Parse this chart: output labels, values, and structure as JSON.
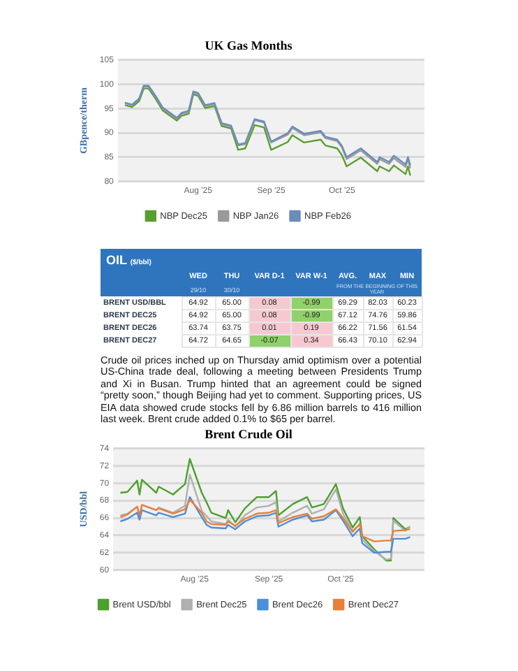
{
  "chart_data": [
    {
      "type": "line",
      "title": "UK Gas Months",
      "ylabel": "GBpence/therm",
      "xlim": [
        "2025-06-28",
        "2025-11-05"
      ],
      "xticks": [
        {
          "value": "2025-08-01",
          "label": "Aug '25"
        },
        {
          "value": "2025-09-01",
          "label": "Sep '25"
        },
        {
          "value": "2025-10-01",
          "label": "Oct '25"
        }
      ],
      "ylim": [
        80,
        105
      ],
      "yticks": [
        80,
        85,
        90,
        95,
        100,
        105
      ],
      "grid": "y",
      "legend": "bottom",
      "x": [
        "2025-07-01",
        "2025-07-04",
        "2025-07-07",
        "2025-07-09",
        "2025-07-11",
        "2025-07-14",
        "2025-07-17",
        "2025-07-23",
        "2025-07-25",
        "2025-07-28",
        "2025-07-30",
        "2025-08-01",
        "2025-08-04",
        "2025-08-08",
        "2025-08-11",
        "2025-08-15",
        "2025-08-18",
        "2025-08-21",
        "2025-08-25",
        "2025-08-29",
        "2025-09-01",
        "2025-09-08",
        "2025-09-10",
        "2025-09-15",
        "2025-09-22",
        "2025-09-24",
        "2025-09-29",
        "2025-10-01",
        "2025-10-03",
        "2025-10-09",
        "2025-10-16",
        "2025-10-17",
        "2025-10-21",
        "2025-10-23",
        "2025-10-28",
        "2025-10-29",
        "2025-10-30"
      ],
      "series": [
        {
          "name": "NBP Dec25",
          "color": "#5a9e2e",
          "values": [
            95.7,
            95.3,
            96.5,
            99.1,
            99.1,
            97.0,
            94.6,
            92.5,
            93.5,
            93.9,
            97.9,
            97.6,
            95.1,
            95.5,
            91.4,
            90.9,
            86.5,
            86.8,
            91.6,
            91.1,
            86.5,
            88.1,
            89.5,
            88.0,
            88.6,
            87.4,
            86.8,
            85.4,
            83.1,
            84.9,
            82.1,
            83.1,
            82.1,
            83.3,
            81.5,
            83.1,
            81.2
          ]
        },
        {
          "name": "NBP Jan26",
          "color": "#9a9a9a",
          "values": [
            96.1,
            95.7,
            96.9,
            99.5,
            99.5,
            97.4,
            95.0,
            92.9,
            93.9,
            94.3,
            98.3,
            98.0,
            95.5,
            95.9,
            91.8,
            91.3,
            87.4,
            87.7,
            92.6,
            92.1,
            88.0,
            89.6,
            91.0,
            89.5,
            90.1,
            88.9,
            88.3,
            87.0,
            84.6,
            86.4,
            83.6,
            84.6,
            83.6,
            84.8,
            83.0,
            84.6,
            82.7
          ]
        },
        {
          "name": "NBP Feb26",
          "color": "#6a8cba",
          "values": [
            96.2,
            95.8,
            97.0,
            99.7,
            99.7,
            97.6,
            95.2,
            93.1,
            94.1,
            94.5,
            98.5,
            98.2,
            95.7,
            96.1,
            92.0,
            91.5,
            87.6,
            87.9,
            92.8,
            92.3,
            88.2,
            89.9,
            91.3,
            89.8,
            90.4,
            89.2,
            88.6,
            87.3,
            85.0,
            86.8,
            84.0,
            85.0,
            84.0,
            85.3,
            83.5,
            85.0,
            83.3
          ]
        }
      ]
    },
    {
      "type": "heatmap",
      "title": "OIL",
      "subtitle": "($/bbl)",
      "categories": [
        "WED",
        "THU",
        "VAR D-1",
        "VAR W-1",
        "AVG.",
        "MAX",
        "MIN"
      ],
      "y_categories": [
        "BRENT USD/BBL",
        "BRENT DEC25",
        "BRENT DEC26",
        "BRENT DEC27"
      ],
      "cells": [
        [
          64.92,
          65.0,
          0.08,
          -0.99,
          69.29,
          82.03,
          60.23
        ],
        [
          64.92,
          65.0,
          0.08,
          -0.99,
          67.12,
          74.76,
          59.86
        ],
        [
          63.74,
          63.75,
          0.01,
          0.19,
          66.22,
          71.56,
          61.54
        ],
        [
          64.72,
          64.65,
          -0.07,
          0.34,
          66.43,
          70.1,
          62.94
        ]
      ],
      "colors": [
        "#ffffff",
        "#ffffff",
        "#f6c9d0",
        "#8fd16a",
        "#ffffff",
        "#ffffff",
        "#ffffff",
        "#ffffff",
        "#ffffff",
        "#f6c9d0",
        "#8fd16a",
        "#ffffff",
        "#ffffff",
        "#ffffff",
        "#ffffff",
        "#ffffff",
        "#f6c9d0",
        "#f6c9d0",
        "#ffffff",
        "#ffffff",
        "#ffffff",
        "#ffffff",
        "#ffffff",
        "#8fd16a",
        "#f6c9d0",
        "#ffffff",
        "#ffffff",
        "#ffffff"
      ],
      "data_labels": true,
      "cell_labels": [
        [
          "64.92",
          "65.00",
          "0.08",
          "-0.99",
          "69.29",
          "82.03",
          "60.23"
        ],
        [
          "64.92",
          "65.00",
          "0.08",
          "-0.99",
          "67.12",
          "74.76",
          "59.86"
        ],
        [
          "63.74",
          "63.75",
          "0.01",
          "0.19",
          "66.22",
          "71.56",
          "61.54"
        ],
        [
          "64.72",
          "64.65",
          "-0.07",
          "0.34",
          "66.43",
          "70.10",
          "62.94"
        ]
      ],
      "annotations": [
        "29/10",
        "30/10",
        "FROM THE BEGINNING OF THIS YEAR",
        "Crude oil prices inched up on Thursday amid optimism over a potential US-China trade deal, following a meeting between Presidents Trump and Xi in Busan. Trump hinted that an agreement could be signed “pretty soon,” though Beijing had yet to comment. Supporting prices, US EIA data showed crude stocks fell by 6.86 million barrels to 416 million last week. Brent crude added 0.1% to $65 per barrel."
      ]
    },
    {
      "type": "line",
      "title": "Brent Crude Oil",
      "ylabel": "USD/bbl",
      "xlim": [
        "2025-06-28",
        "2025-11-05"
      ],
      "xticks": [
        {
          "value": "2025-08-01",
          "label": "Aug '25"
        },
        {
          "value": "2025-09-01",
          "label": "Sep '25"
        },
        {
          "value": "2025-10-01",
          "label": "Oct '25"
        }
      ],
      "ylim": [
        60,
        74
      ],
      "yticks": [
        60,
        62,
        64,
        66,
        68,
        70,
        72,
        74
      ],
      "grid": "y",
      "legend": "bottom",
      "x": [
        "2025-07-01",
        "2025-07-04",
        "2025-07-08",
        "2025-07-09",
        "2025-07-10",
        "2025-07-16",
        "2025-07-17",
        "2025-07-23",
        "2025-07-28",
        "2025-07-30",
        "2025-08-04",
        "2025-08-06",
        "2025-08-08",
        "2025-08-14",
        "2025-08-15",
        "2025-08-18",
        "2025-08-22",
        "2025-08-27",
        "2025-09-01",
        "2025-09-04",
        "2025-09-05",
        "2025-09-11",
        "2025-09-17",
        "2025-09-19",
        "2025-09-24",
        "2025-09-29",
        "2025-10-02",
        "2025-10-06",
        "2025-10-09",
        "2025-10-10",
        "2025-10-15",
        "2025-10-20",
        "2025-10-22",
        "2025-10-23",
        "2025-10-28",
        "2025-10-30"
      ],
      "series": [
        {
          "name": "Brent USD/bbl",
          "color": "#4ca02c",
          "values": [
            68.9,
            69.0,
            70.3,
            68.7,
            70.4,
            68.9,
            69.6,
            68.7,
            69.9,
            72.8,
            68.9,
            67.8,
            66.6,
            66.0,
            66.9,
            65.5,
            67.1,
            68.4,
            68.4,
            69.1,
            66.3,
            67.6,
            68.4,
            67.2,
            67.6,
            69.9,
            67.1,
            64.9,
            66.1,
            63.9,
            62.4,
            61.1,
            61.1,
            66.0,
            64.7,
            65.0
          ]
        },
        {
          "name": "Brent Dec25",
          "color": "#b0b0b0",
          "values": [
            66.3,
            66.5,
            67.3,
            66.2,
            67.5,
            66.9,
            67.2,
            66.6,
            67.4,
            71.0,
            66.8,
            66.2,
            65.6,
            65.3,
            65.8,
            65.0,
            66.3,
            67.2,
            67.4,
            67.8,
            65.6,
            66.6,
            67.4,
            66.5,
            67.0,
            69.3,
            66.5,
            64.5,
            65.3,
            63.5,
            62.2,
            61.2,
            61.3,
            65.7,
            64.5,
            65.0
          ]
        },
        {
          "name": "Brent Dec26",
          "color": "#4a8fd8",
          "values": [
            65.6,
            65.9,
            66.6,
            65.8,
            66.9,
            66.3,
            66.6,
            66.1,
            66.5,
            68.4,
            66.1,
            65.2,
            64.9,
            64.8,
            65.2,
            64.7,
            65.6,
            66.2,
            66.3,
            66.6,
            65.0,
            65.8,
            66.3,
            65.6,
            65.8,
            66.9,
            65.7,
            63.9,
            64.8,
            63.1,
            62.0,
            62.1,
            62.1,
            63.6,
            63.6,
            63.8
          ]
        },
        {
          "name": "Brent Dec27",
          "color": "#e8803a",
          "values": [
            66.1,
            66.4,
            67.3,
            66.3,
            67.5,
            66.9,
            67.1,
            66.5,
            67.0,
            68.1,
            66.6,
            65.6,
            65.3,
            65.2,
            65.6,
            65.1,
            65.9,
            66.5,
            66.6,
            66.9,
            65.4,
            66.1,
            66.5,
            65.9,
            66.2,
            67.0,
            66.0,
            64.4,
            65.3,
            63.9,
            63.3,
            63.4,
            63.4,
            64.5,
            64.6,
            64.7
          ]
        }
      ]
    }
  ]
}
